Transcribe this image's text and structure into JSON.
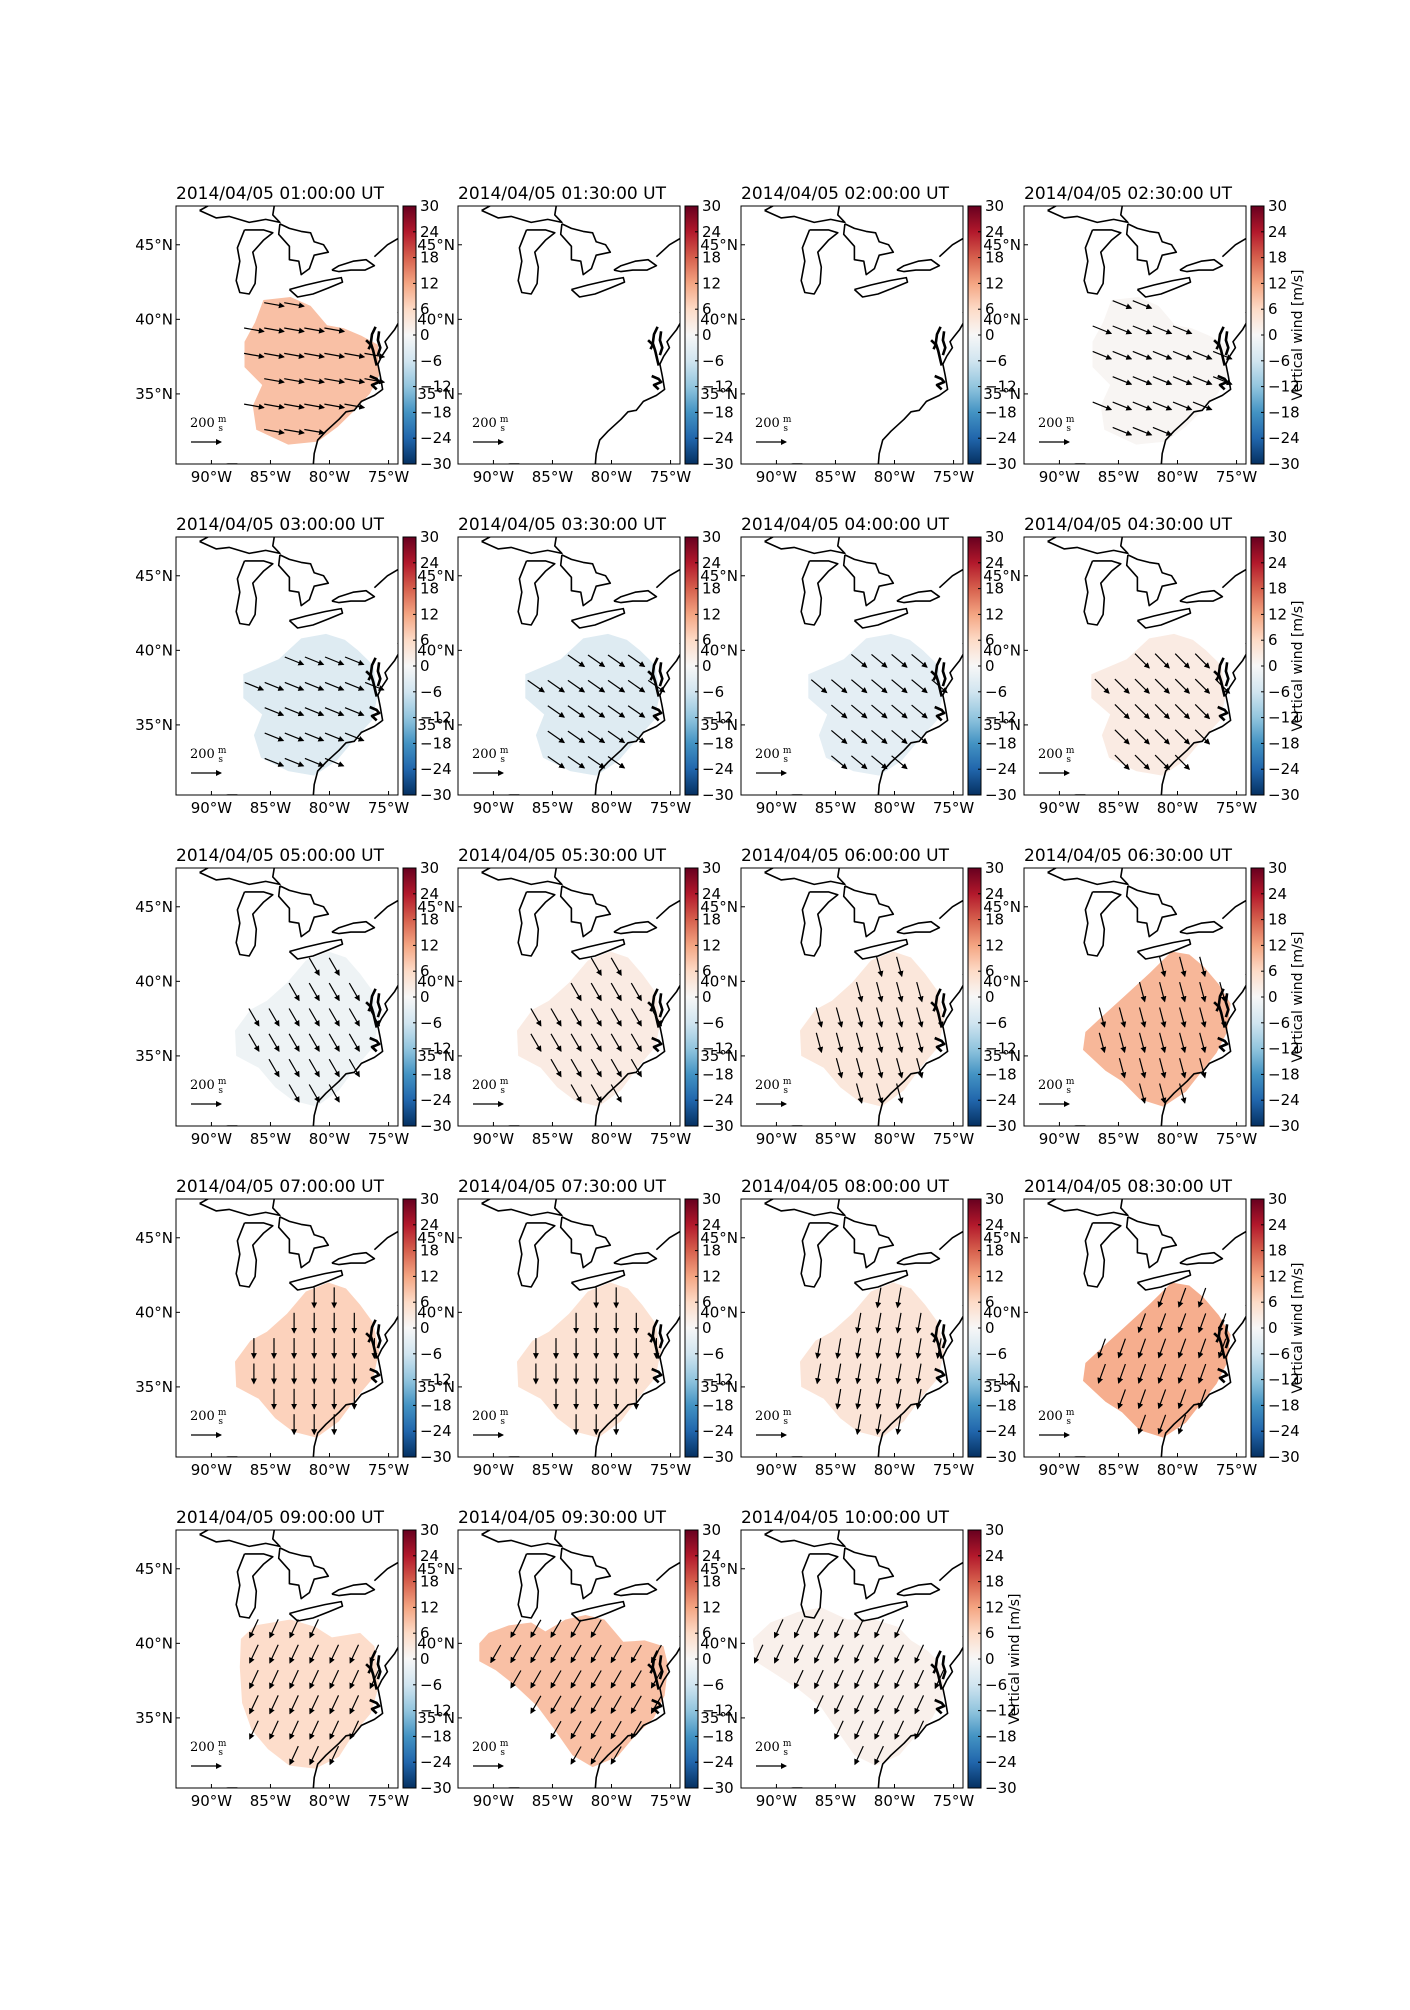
{
  "figure": {
    "colorbar": {
      "ticks": [
        "30",
        "24",
        "18",
        "12",
        "6",
        "0",
        "−6",
        "−12",
        "−18",
        "−24",
        "−30"
      ],
      "min": -30,
      "max": 30,
      "label": "Vertical wind [m/s]",
      "colormap": [
        "#67001f",
        "#b2182b",
        "#d6604d",
        "#f4a582",
        "#fddbc7",
        "#f7f7f7",
        "#d1e5f0",
        "#92c5de",
        "#4393c3",
        "#2166ac",
        "#053061"
      ]
    },
    "lon_ticks": [
      "90°W",
      "85°W",
      "80°W",
      "75°W"
    ],
    "lat_ticks": [
      "45°N",
      "40°N",
      "35°N"
    ],
    "scale_label": "200",
    "scale_unit_num": "m",
    "scale_unit_den": "s",
    "panels": [
      {
        "title": "2014/04/05 01:00:00 UT",
        "vertical_wind": 9,
        "wind_dir_deg": 100,
        "region": "A",
        "colorbar_label": false
      },
      {
        "title": "2014/04/05 01:30:00 UT",
        "vertical_wind": null,
        "wind_dir_deg": null,
        "region": "none",
        "colorbar_label": false
      },
      {
        "title": "2014/04/05 02:00:00 UT",
        "vertical_wind": null,
        "wind_dir_deg": null,
        "region": "none",
        "colorbar_label": false
      },
      {
        "title": "2014/04/05 02:30:00 UT",
        "vertical_wind": 0.5,
        "wind_dir_deg": 112,
        "region": "A",
        "colorbar_label": true
      },
      {
        "title": "2014/04/05 03:00:00 UT",
        "vertical_wind": -4,
        "wind_dir_deg": 112,
        "region": "B",
        "colorbar_label": false
      },
      {
        "title": "2014/04/05 03:30:00 UT",
        "vertical_wind": -4,
        "wind_dir_deg": 125,
        "region": "B",
        "colorbar_label": false
      },
      {
        "title": "2014/04/05 04:00:00 UT",
        "vertical_wind": -3,
        "wind_dir_deg": 130,
        "region": "B",
        "colorbar_label": false
      },
      {
        "title": "2014/04/05 04:30:00 UT",
        "vertical_wind": 2.5,
        "wind_dir_deg": 135,
        "region": "B",
        "colorbar_label": true
      },
      {
        "title": "2014/04/05 05:00:00 UT",
        "vertical_wind": -1.5,
        "wind_dir_deg": 150,
        "region": "C",
        "colorbar_label": false
      },
      {
        "title": "2014/04/05 05:30:00 UT",
        "vertical_wind": 2.5,
        "wind_dir_deg": 150,
        "region": "C",
        "colorbar_label": false
      },
      {
        "title": "2014/04/05 06:00:00 UT",
        "vertical_wind": 3.5,
        "wind_dir_deg": 165,
        "region": "C",
        "colorbar_label": false
      },
      {
        "title": "2014/04/05 06:30:00 UT",
        "vertical_wind": 10,
        "wind_dir_deg": 165,
        "region": "D",
        "colorbar_label": true
      },
      {
        "title": "2014/04/05 07:00:00 UT",
        "vertical_wind": 7,
        "wind_dir_deg": 180,
        "region": "C",
        "colorbar_label": false
      },
      {
        "title": "2014/04/05 07:30:00 UT",
        "vertical_wind": 4.5,
        "wind_dir_deg": 180,
        "region": "C",
        "colorbar_label": false
      },
      {
        "title": "2014/04/05 08:00:00 UT",
        "vertical_wind": 4,
        "wind_dir_deg": 190,
        "region": "C",
        "colorbar_label": false
      },
      {
        "title": "2014/04/05 08:30:00 UT",
        "vertical_wind": 11,
        "wind_dir_deg": 200,
        "region": "D",
        "colorbar_label": true
      },
      {
        "title": "2014/04/05 09:00:00 UT",
        "vertical_wind": 5.5,
        "wind_dir_deg": 205,
        "region": "E",
        "colorbar_label": false
      },
      {
        "title": "2014/04/05 09:30:00 UT",
        "vertical_wind": 9,
        "wind_dir_deg": 210,
        "region": "F",
        "colorbar_label": false
      },
      {
        "title": "2014/04/05 10:00:00 UT",
        "vertical_wind": 1.5,
        "wind_dir_deg": 205,
        "region": "G",
        "colorbar_label": true
      }
    ]
  }
}
